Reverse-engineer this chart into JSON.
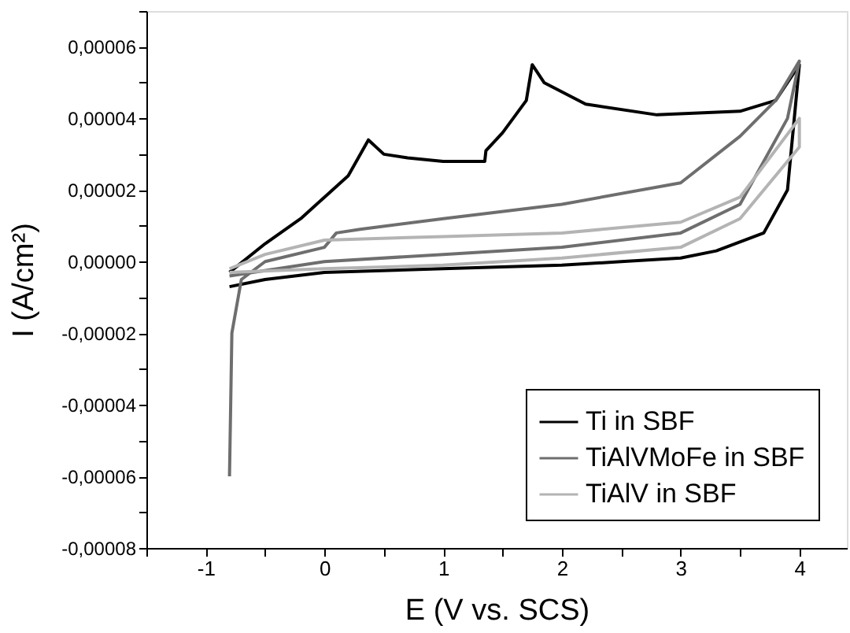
{
  "chart_data": {
    "type": "line",
    "xlabel": "E (V vs. SCS)",
    "ylabel": "I (A/cm²)",
    "xlim": [
      -1.5,
      4.4
    ],
    "ylim": [
      -8e-05,
      7e-05
    ],
    "xticks": [
      {
        "value": -1.5,
        "label": null
      },
      -1,
      {
        "value": -0.5,
        "label": null
      },
      0,
      {
        "value": 0.5,
        "label": null
      },
      1,
      {
        "value": 1.5,
        "label": null
      },
      2,
      {
        "value": 2.5,
        "label": null
      },
      3,
      {
        "value": 3.5,
        "label": null
      },
      4
    ],
    "yticks": [
      {
        "value": -8e-05,
        "label": "-0,00008"
      },
      {
        "value": -7e-05,
        "label": null
      },
      {
        "value": -6e-05,
        "label": "-0,00006"
      },
      {
        "value": -5e-05,
        "label": null
      },
      {
        "value": -4e-05,
        "label": "-0,00004"
      },
      {
        "value": -3e-05,
        "label": null
      },
      {
        "value": -2e-05,
        "label": "-0,00002"
      },
      {
        "value": -1e-05,
        "label": null
      },
      {
        "value": 0,
        "label": "0,00000"
      },
      {
        "value": 1e-05,
        "label": null
      },
      {
        "value": 2e-05,
        "label": "0,00002"
      },
      {
        "value": 3e-05,
        "label": null
      },
      {
        "value": 4e-05,
        "label": "0,00004"
      },
      {
        "value": 5e-05,
        "label": null
      },
      {
        "value": 6e-05,
        "label": "0,00006"
      },
      {
        "value": 7e-05,
        "label": null
      }
    ],
    "grid": false,
    "legend": "bottom right",
    "marker": "none",
    "line_style": "solid",
    "series": [
      {
        "name": "Ti in SBF",
        "color": "#000000",
        "x": [
          -0.8,
          -0.5,
          -0.2,
          0,
          0.2,
          0.37,
          0.5,
          0.7,
          1.0,
          1.35,
          1.36,
          1.5,
          1.7,
          1.75,
          1.85,
          2.2,
          2.8,
          3.5,
          3.8,
          4.0,
          3.9,
          3.7,
          3.3,
          3.0,
          2.5,
          2.0,
          1.0,
          0,
          -0.5,
          -0.8
        ],
        "values": [
          -3e-06,
          5e-06,
          1.2e-05,
          1.8e-05,
          2.4e-05,
          3.4e-05,
          3e-05,
          2.9e-05,
          2.8e-05,
          2.8e-05,
          3.1e-05,
          3.6e-05,
          4.5e-05,
          5.5e-05,
          5e-05,
          4.4e-05,
          4.1e-05,
          4.2e-05,
          4.5e-05,
          5.5e-05,
          2e-05,
          8e-06,
          3e-06,
          1e-06,
          0.0,
          -1e-06,
          -2e-06,
          -3e-06,
          -5e-06,
          -7e-06
        ]
      },
      {
        "name": "TiAlVMoFe in SBF",
        "color": "#6e6e6e",
        "x": [
          -0.8,
          -0.78,
          -0.7,
          -0.5,
          0,
          0.1,
          0.3,
          1,
          2,
          3,
          3.5,
          3.8,
          4.0,
          3.9,
          3.5,
          3,
          2,
          1,
          0,
          -0.8
        ],
        "values": [
          -6e-05,
          -2e-05,
          -5e-06,
          0.0,
          4e-06,
          8e-06,
          9e-06,
          1.2e-05,
          1.6e-05,
          2.2e-05,
          3.5e-05,
          4.5e-05,
          5.6e-05,
          4e-05,
          1.6e-05,
          8e-06,
          4e-06,
          2e-06,
          0.0,
          -4e-06
        ]
      },
      {
        "name": "TiAlV in SBF",
        "color": "#b4b4b4",
        "x": [
          -0.8,
          -0.5,
          0,
          1,
          2,
          3,
          3.5,
          4,
          4,
          3.5,
          3,
          2,
          1,
          0,
          -0.8
        ],
        "values": [
          -2e-06,
          2e-06,
          6e-06,
          7e-06,
          8e-06,
          1.1e-05,
          1.8e-05,
          4e-05,
          3.2e-05,
          1.2e-05,
          4e-06,
          1e-06,
          -1e-06,
          -2e-06,
          -3e-06
        ]
      }
    ]
  }
}
